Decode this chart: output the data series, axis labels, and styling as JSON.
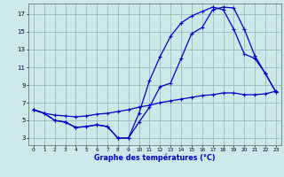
{
  "xlabel": "Graphe des températures (°C)",
  "x_ticks": [
    0,
    1,
    2,
    3,
    4,
    5,
    6,
    7,
    8,
    9,
    10,
    11,
    12,
    13,
    14,
    15,
    16,
    17,
    18,
    19,
    20,
    21,
    22,
    23
  ],
  "y_ticks": [
    3,
    5,
    7,
    9,
    11,
    13,
    15,
    17
  ],
  "xlim": [
    -0.5,
    23.5
  ],
  "ylim": [
    2.2,
    18.2
  ],
  "bg_color": "#cce8e8",
  "line_color": "#0000cc",
  "grid_color": "#99bbbb",
  "line1_x": [
    0,
    1,
    2,
    3,
    4,
    5,
    6,
    7,
    8,
    9,
    10,
    11,
    12,
    13,
    14,
    15,
    16,
    17,
    18,
    19,
    20,
    21,
    22,
    23
  ],
  "line1_y": [
    6.2,
    5.8,
    5.6,
    5.5,
    5.4,
    5.5,
    5.7,
    5.8,
    6.0,
    6.2,
    6.5,
    6.7,
    7.0,
    7.2,
    7.4,
    7.6,
    7.8,
    7.9,
    8.1,
    8.1,
    7.9,
    7.9,
    8.0,
    8.3
  ],
  "line2_x": [
    0,
    1,
    2,
    3,
    4,
    5,
    6,
    7,
    8,
    9,
    10,
    11,
    12,
    13,
    14,
    15,
    16,
    17,
    18,
    19,
    20,
    21,
    22,
    23
  ],
  "line2_y": [
    6.2,
    5.8,
    5.0,
    4.8,
    4.2,
    4.3,
    4.5,
    4.3,
    3.0,
    3.0,
    4.8,
    6.5,
    8.8,
    9.2,
    12.0,
    14.8,
    15.5,
    17.5,
    17.8,
    17.7,
    15.3,
    12.3,
    10.3,
    8.2
  ],
  "line3_x": [
    0,
    1,
    2,
    3,
    4,
    5,
    6,
    7,
    8,
    9,
    10,
    11,
    12,
    13,
    14,
    15,
    16,
    17,
    18,
    19,
    20,
    21,
    22,
    23
  ],
  "line3_y": [
    6.2,
    5.8,
    5.0,
    4.8,
    4.2,
    4.3,
    4.5,
    4.3,
    3.0,
    3.0,
    5.8,
    9.5,
    12.2,
    14.5,
    16.0,
    16.8,
    17.3,
    17.8,
    17.5,
    15.3,
    12.5,
    12.0,
    10.3,
    8.2
  ],
  "marker": "+",
  "markersize": 3.5,
  "linewidth": 0.9
}
